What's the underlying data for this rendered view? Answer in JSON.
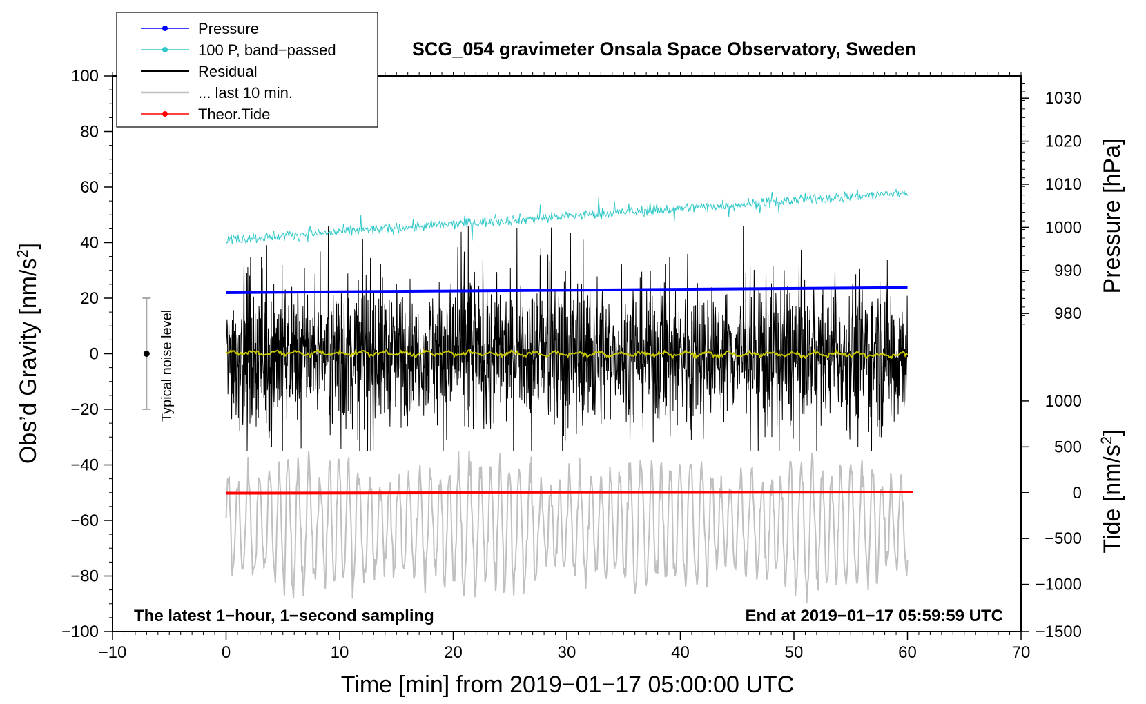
{
  "chart_data": {
    "type": "line",
    "title": "SCG_054 gravimeter Onsala Space Observatory, Sweden",
    "xlabel": "Time [min] from 2019−01−17 05:00:00 UTC",
    "ylabel_left": "Obs’d Gravity [nm/s",
    "ylabel_left_sup": "2",
    "ylabel_left_close": "]",
    "ylabel_right_pressure": "Pressure [hPa]",
    "ylabel_right_tide": "Tide [nm/s",
    "ylabel_right_tide_sup": "2",
    "ylabel_right_tide_close": "]",
    "xlim": [
      -10,
      70
    ],
    "ylim": [
      -100,
      100
    ],
    "xticks": [
      "−10",
      "0",
      "10",
      "20",
      "30",
      "40",
      "50",
      "60",
      "70"
    ],
    "xtick_values": [
      -10,
      0,
      10,
      20,
      30,
      40,
      50,
      60,
      70
    ],
    "yticks": [
      "100",
      "80",
      "60",
      "40",
      "20",
      "0",
      "−20",
      "−40",
      "−60",
      "−80",
      "−100"
    ],
    "ytick_values": [
      100,
      80,
      60,
      40,
      20,
      0,
      -20,
      -40,
      -60,
      -80,
      -100
    ],
    "pressure_axis": {
      "ticks": [
        "1030",
        "1020",
        "1010",
        "1000",
        "990",
        "980"
      ],
      "values": [
        1030,
        1020,
        1010,
        1000,
        990,
        980
      ],
      "gravity_at": [
        92,
        76.5,
        61,
        45.5,
        30,
        14.5
      ]
    },
    "tide_axis": {
      "ticks": [
        "1000",
        "500",
        "0",
        "−500",
        "−1000",
        "−1500"
      ],
      "values": [
        1000,
        500,
        0,
        -500,
        -1000,
        -1500
      ],
      "gravity_at": [
        -17,
        -33.5,
        -50,
        -66.5,
        -83,
        -100
      ]
    },
    "legend": {
      "position": "top-left",
      "entries": [
        {
          "label": "Pressure",
          "color": "#0000ff",
          "marker": true
        },
        {
          "label": "100 P, band−passed",
          "color": "#30c8c8",
          "marker": true
        },
        {
          "label": "Residual",
          "color": "#000000",
          "marker": false
        },
        {
          "label": "... last 10 min.",
          "color": "#c0c0c0",
          "marker": false
        },
        {
          "label": "Theor.Tide",
          "color": "#ff0000",
          "marker": true
        }
      ]
    },
    "annotations": {
      "left": "The latest 1−hour, 1−second sampling",
      "right": "End at 2019−01−17 05:59:59 UTC",
      "noise": "Typical noise level"
    },
    "noise_bar": {
      "x": -7,
      "center": 0,
      "half_range": 20
    },
    "series": [
      {
        "name": "Pressure",
        "color": "#0000ff",
        "x_start": 0,
        "x_end": 60,
        "y_start": 22.0,
        "y_end": 23.8
      },
      {
        "name": "100 P, band−passed",
        "color": "#30c8c8",
        "x_start": 0,
        "x_end": 60,
        "y_start": 41,
        "y_end": 58,
        "noise_amp": 1.6
      },
      {
        "name": "Residual",
        "color": "#000000",
        "x_start": 0,
        "x_end": 60,
        "center": 0,
        "amp": 13,
        "min": -35,
        "max": 46
      },
      {
        "name": "Smoothed residual",
        "color": "#c8c800",
        "x_start": 0,
        "x_end": 60,
        "center": 0.3,
        "amp": 0.6
      },
      {
        "name": "... last 10 min.",
        "color": "#c0c0c0",
        "x_start": 0,
        "x_end": 60,
        "center": -62,
        "amp": 15,
        "min": -100,
        "max": -35
      },
      {
        "name": "Theor.Tide",
        "color": "#ff0000",
        "x_start": 0,
        "x_end": 60.5,
        "y_start": -50.2,
        "y_end": -49.8
      }
    ],
    "colors": {
      "pressure": "#0000ff",
      "bandpassed": "#30c8c8",
      "residual": "#000000",
      "smoothed": "#c8c800",
      "last10": "#c0c0c0",
      "tide": "#ff0000"
    }
  }
}
